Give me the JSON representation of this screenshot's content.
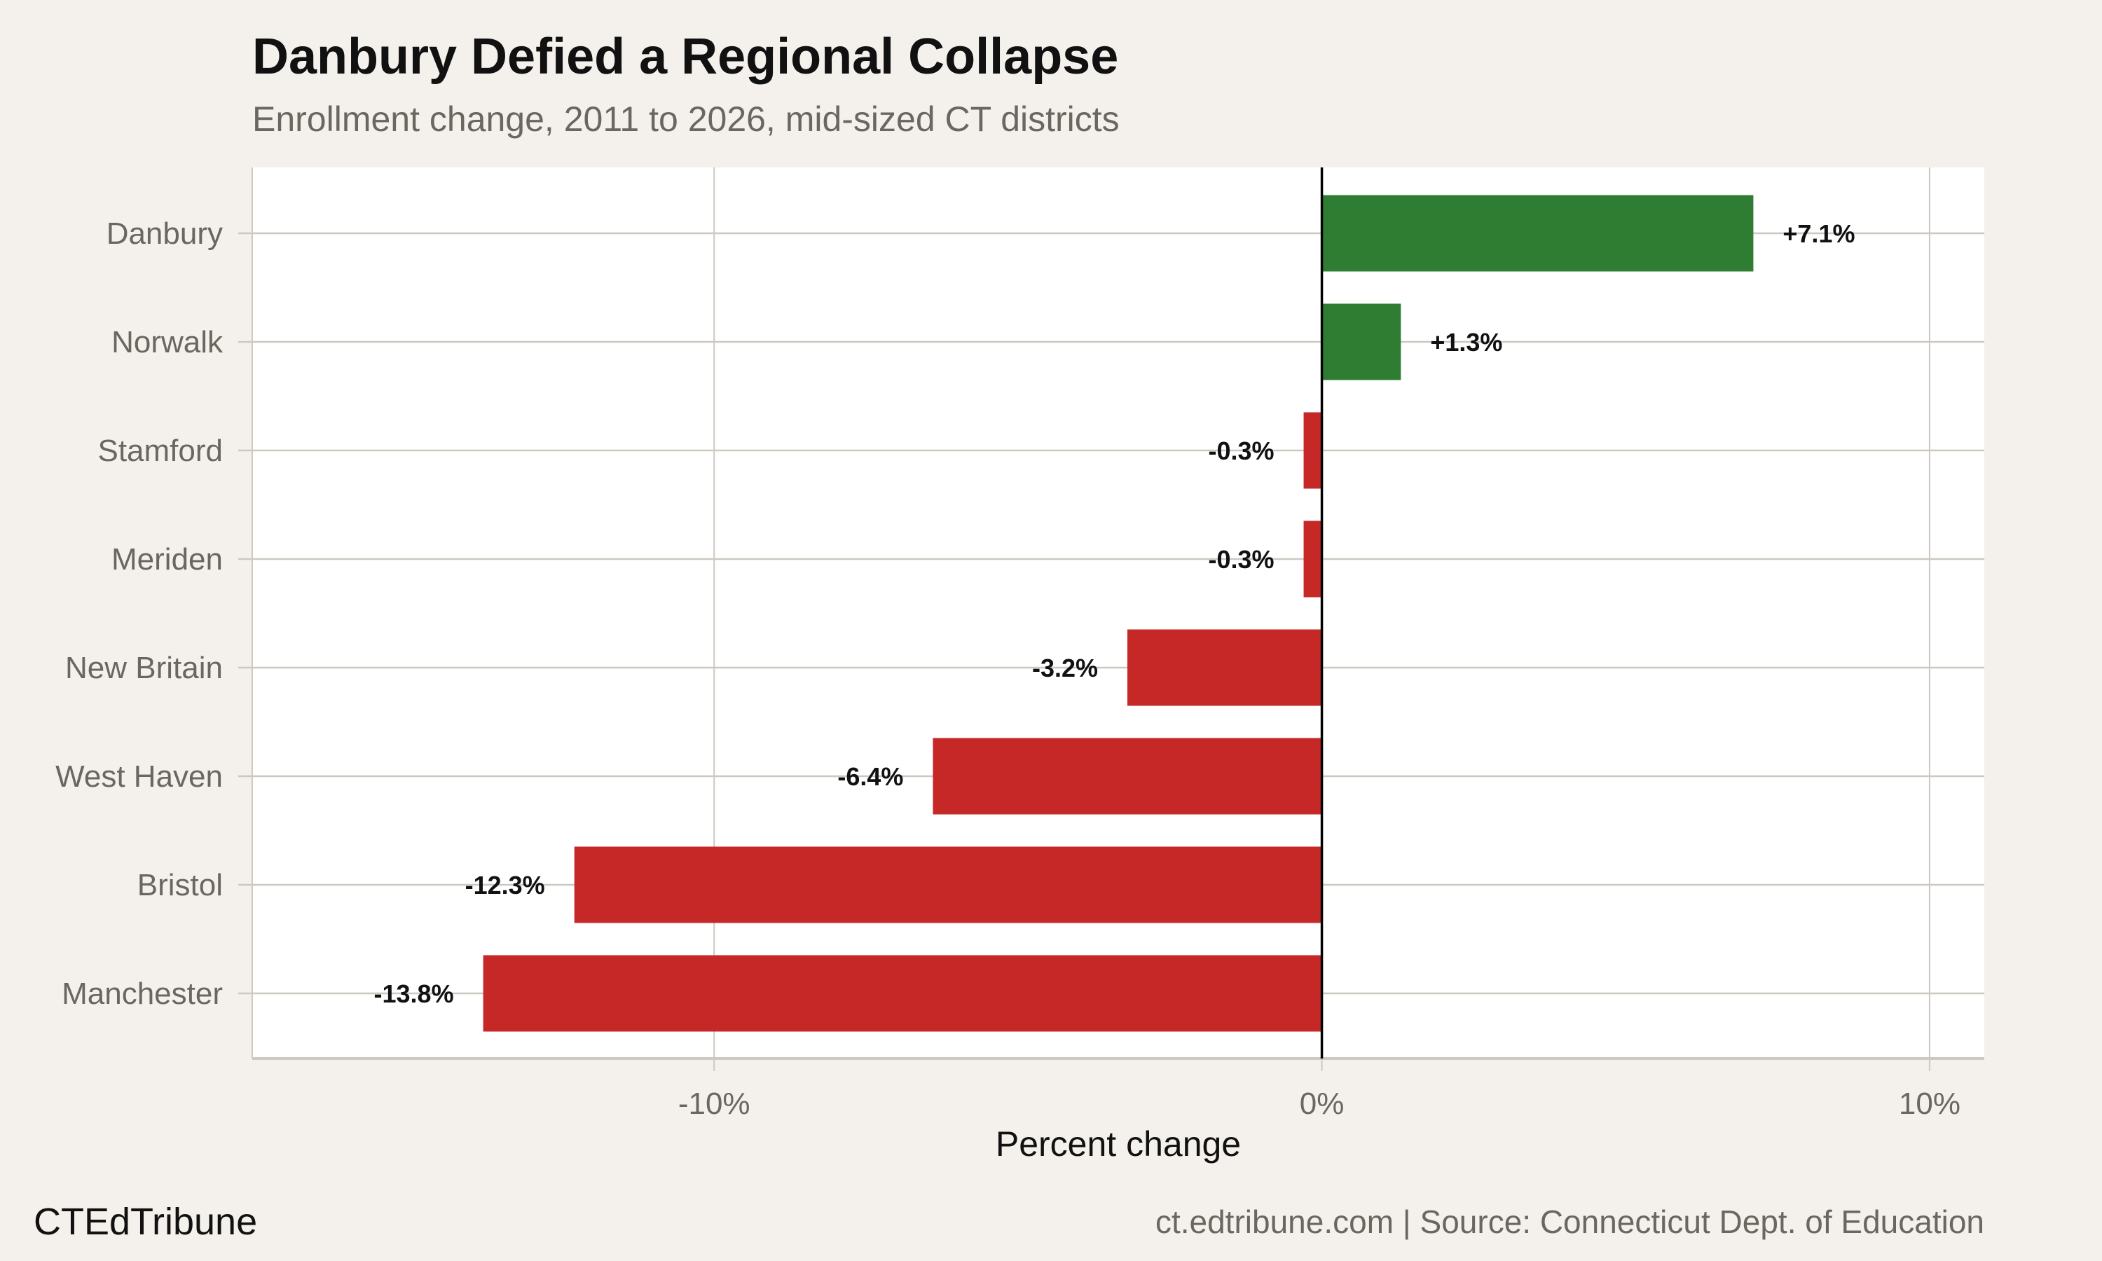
{
  "title": "Danbury Defied a Regional Collapse",
  "subtitle": "Enrollment change, 2011 to 2026, mid-sized CT districts",
  "footer": {
    "brand": "CTEdTribune",
    "source": "ct.edtribune.com | Source: Connecticut Dept. of Education"
  },
  "colors": {
    "positive": "#2e7d32",
    "negative": "#c62828",
    "background": "#f4f1ec",
    "panel": "#ffffff",
    "grid": "#cdc8c0"
  },
  "chart_data": {
    "type": "bar",
    "orientation": "horizontal",
    "title": "Danbury Defied a Regional Collapse",
    "subtitle": "Enrollment change, 2011 to 2026, mid-sized CT districts",
    "xlabel": "Percent change",
    "ylabel": "",
    "xlim": [
      -17.6,
      10.9
    ],
    "xticks": [
      -10,
      0,
      10
    ],
    "xtick_labels": [
      "-10%",
      "0%",
      "10%"
    ],
    "grid": true,
    "categories": [
      "Danbury",
      "Norwalk",
      "Stamford",
      "Meriden",
      "New Britain",
      "West Haven",
      "Bristol",
      "Manchester"
    ],
    "values": [
      7.1,
      1.3,
      -0.3,
      -0.3,
      -3.2,
      -6.4,
      -12.3,
      -13.8
    ],
    "data_labels": [
      "+7.1%",
      "+1.3%",
      "-0.3%",
      "-0.3%",
      "-3.2%",
      "-6.4%",
      "-12.3%",
      "-13.8%"
    ]
  }
}
